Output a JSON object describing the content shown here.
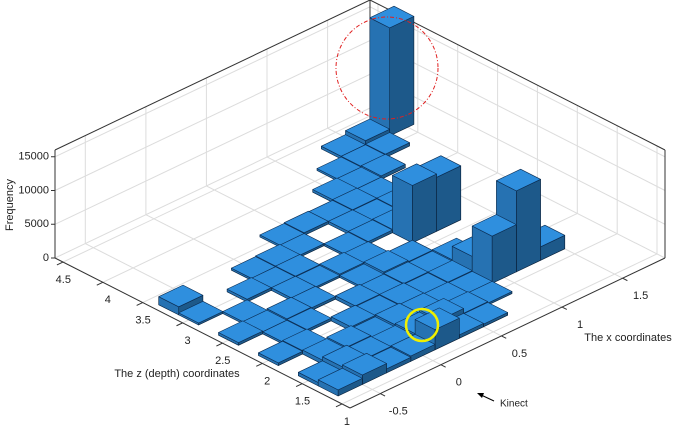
{
  "chart_data": {
    "type": "bar3d",
    "x_label": "The x coordinates",
    "z_label": "The z (depth) coordinates",
    "y_label": "Frequency",
    "annotation": "Kinect",
    "color": "#2f8fde",
    "xlim": [
      -0.75,
      1.85
    ],
    "xticks": [
      -0.5,
      0,
      0.5,
      1,
      1.5
    ],
    "zlim": [
      0.9,
      4.6
    ],
    "zticks": [
      1,
      1.5,
      2,
      2.5,
      3,
      3.5,
      4,
      4.5
    ],
    "ylim": [
      0,
      16000
    ],
    "yticks": [
      0,
      5000,
      10000,
      15000
    ],
    "grid": true,
    "x": [
      -0.6,
      -0.4,
      -0.2,
      0,
      0.2,
      0.4,
      0.6,
      -0.6,
      -0.4,
      -0.2,
      0,
      0.2,
      0.4,
      0.6,
      0.8,
      -0.4,
      -0.2,
      0,
      0.2,
      0.4,
      0.6,
      0.8,
      1.0,
      1.2,
      1.4,
      -0.6,
      -0.4,
      0,
      0.2,
      0.4,
      0.6,
      0.8,
      1.0,
      1.2,
      -0.4,
      -0.2,
      0.2,
      0.4,
      0.6,
      0.8,
      1.0,
      -0.6,
      -0.4,
      -0.2,
      0,
      0.4,
      0.6,
      0.8,
      -0.4,
      0,
      0.2,
      0.4,
      0.6,
      1.0,
      1.2,
      -0.6,
      -0.2,
      0,
      0.2,
      0.6,
      0.8,
      1.0,
      -0.6,
      0,
      0.2,
      0.4,
      0.8,
      1.0,
      1.2,
      0.4,
      0.6,
      0.8,
      1.0,
      1.2,
      1.0,
      1.2,
      1.4,
      1.2,
      1.4,
      1.6,
      1.4,
      1.6,
      1.8
    ],
    "z": [
      1.25,
      1.25,
      1.25,
      1.25,
      1.25,
      1.25,
      1.25,
      1.5,
      1.5,
      1.5,
      1.5,
      1.5,
      1.5,
      1.5,
      1.5,
      1.75,
      1.75,
      1.75,
      1.75,
      1.75,
      1.75,
      1.75,
      1.75,
      1.75,
      1.75,
      2.0,
      2.0,
      2.0,
      2.0,
      2.0,
      2.0,
      2.0,
      2.0,
      2.0,
      2.25,
      2.25,
      2.25,
      2.25,
      2.25,
      2.25,
      2.25,
      2.5,
      2.5,
      2.5,
      2.5,
      2.5,
      2.5,
      2.5,
      2.75,
      2.75,
      2.75,
      2.75,
      2.75,
      2.75,
      2.75,
      3.0,
      3.0,
      3.0,
      3.0,
      3.0,
      3.0,
      3.0,
      3.25,
      3.25,
      3.25,
      3.25,
      3.25,
      3.25,
      3.25,
      3.5,
      3.5,
      3.5,
      3.5,
      3.5,
      3.75,
      3.75,
      3.75,
      4.0,
      4.0,
      4.0,
      4.25,
      4.25,
      4.25
    ],
    "values": [
      900,
      1400,
      600,
      800,
      3000,
      500,
      400,
      500,
      1100,
      700,
      600,
      900,
      1200,
      500,
      300,
      600,
      800,
      400,
      700,
      500,
      400,
      300,
      7000,
      12000,
      2000,
      400,
      500,
      600,
      400,
      500,
      300,
      400,
      2500,
      600,
      300,
      400,
      500,
      300,
      400,
      300,
      500,
      400,
      300,
      500,
      400,
      300,
      600,
      400,
      300,
      400,
      300,
      500,
      400,
      8500,
      8000,
      300,
      400,
      300,
      400,
      300,
      400,
      500,
      1200,
      300,
      400,
      300,
      400,
      300,
      400,
      300,
      400,
      300,
      400,
      300,
      400,
      300,
      500,
      300,
      400,
      500,
      400,
      1000,
      16000
    ]
  }
}
